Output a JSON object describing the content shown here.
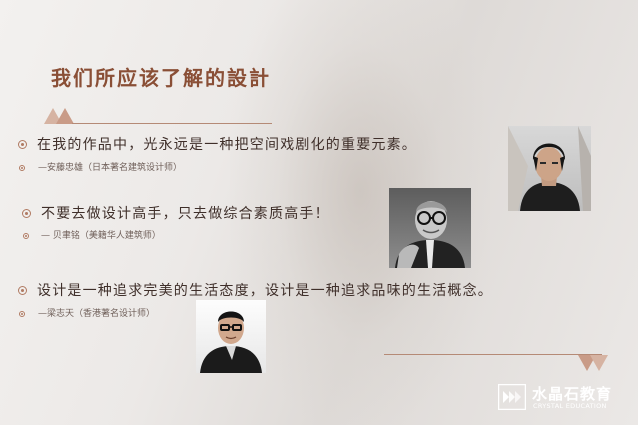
{
  "slide": {
    "title": "我们所应该了解的設計",
    "accent_color": "#8a4f36"
  },
  "quotes": [
    {
      "text": "在我的作品中，光永远是一种把空间戏剧化的重要元素。",
      "attribution": "—安藤忠雄（日本著名建筑设计师）",
      "portrait": "tadao-ando-portrait"
    },
    {
      "text": "不要去做设计高手，只去做综合素质高手！",
      "attribution": "— 贝聿铭（美籍华人建筑师）",
      "portrait": "i-m-pei-portrait"
    },
    {
      "text": "设计是一种追求完美的生活态度，设计是一种追求品味的生活概念。",
      "attribution": "—梁志天（香港著名设计师）",
      "portrait": "steve-leung-portrait"
    }
  ],
  "brand": {
    "name_cn": "水晶石教育",
    "name_en": "CRYSTAL EDUCATION",
    "icon": "crystal-logo-icon"
  }
}
